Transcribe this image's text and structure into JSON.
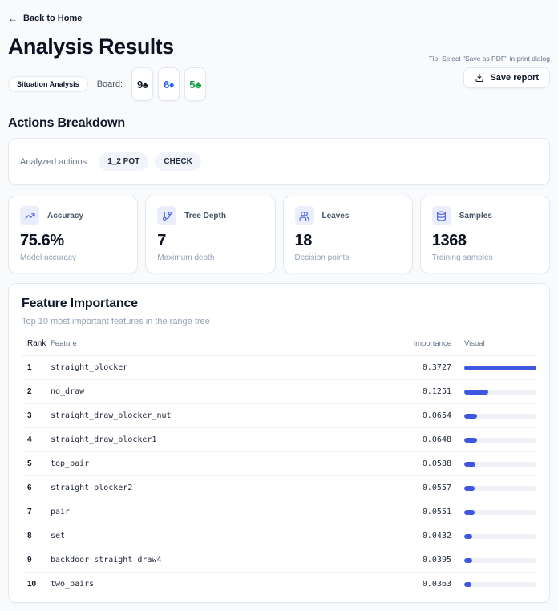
{
  "header": {
    "back_link": "Back to Home",
    "title": "Analysis Results",
    "badge": "Situation Analysis",
    "board_label": "Board:",
    "board_cards": [
      {
        "rank": "9",
        "suit": "♠",
        "suit_name": "spade",
        "color": "#111827"
      },
      {
        "rank": "6",
        "suit": "♦",
        "suit_name": "diamond",
        "color": "#2563eb"
      },
      {
        "rank": "5",
        "suit": "♣",
        "suit_name": "club",
        "color": "#16a34a"
      }
    ],
    "tip": "Tip: Select \"Save as PDF\" in print dialog",
    "save_button": "Save report"
  },
  "actions_breakdown": {
    "title": "Actions Breakdown",
    "label": "Analyzed actions:",
    "actions": [
      "1_2 POT",
      "CHECK"
    ]
  },
  "stats": [
    {
      "icon": "trending-up-icon",
      "label": "Accuracy",
      "value": "75.6%",
      "description": "Model accuracy"
    },
    {
      "icon": "git-branch-icon",
      "label": "Tree Depth",
      "value": "7",
      "description": "Maximum depth"
    },
    {
      "icon": "users-icon",
      "label": "Leaves",
      "value": "18",
      "description": "Decision points"
    },
    {
      "icon": "database-icon",
      "label": "Samples",
      "value": "1368",
      "description": "Training samples"
    }
  ],
  "feature_importance": {
    "title": "Feature Importance",
    "subtitle": "Top 10 most important features in the range tree",
    "columns": [
      "Rank",
      "Feature",
      "Importance",
      "Visual"
    ],
    "max_importance": 0.3727,
    "rows": [
      {
        "rank": "1",
        "feature": "straight_blocker",
        "importance": "0.3727"
      },
      {
        "rank": "2",
        "feature": "no_draw",
        "importance": "0.1251"
      },
      {
        "rank": "3",
        "feature": "straight_draw_blocker_nut",
        "importance": "0.0654"
      },
      {
        "rank": "4",
        "feature": "straight_draw_blocker1",
        "importance": "0.0648"
      },
      {
        "rank": "5",
        "feature": "top_pair",
        "importance": "0.0588"
      },
      {
        "rank": "6",
        "feature": "straight_blocker2",
        "importance": "0.0557"
      },
      {
        "rank": "7",
        "feature": "pair",
        "importance": "0.0551"
      },
      {
        "rank": "8",
        "feature": "set",
        "importance": "0.0432"
      },
      {
        "rank": "9",
        "feature": "backdoor_straight_draw4",
        "importance": "0.0395"
      },
      {
        "rank": "10",
        "feature": "two_pairs",
        "importance": "0.0363"
      }
    ]
  },
  "colors": {
    "accent_blue": "#4056e0",
    "icon_indigo": "#4f63e7",
    "icon_bg": "#e9edfc",
    "diamond_blue": "#2563eb",
    "club_green": "#16a34a"
  }
}
